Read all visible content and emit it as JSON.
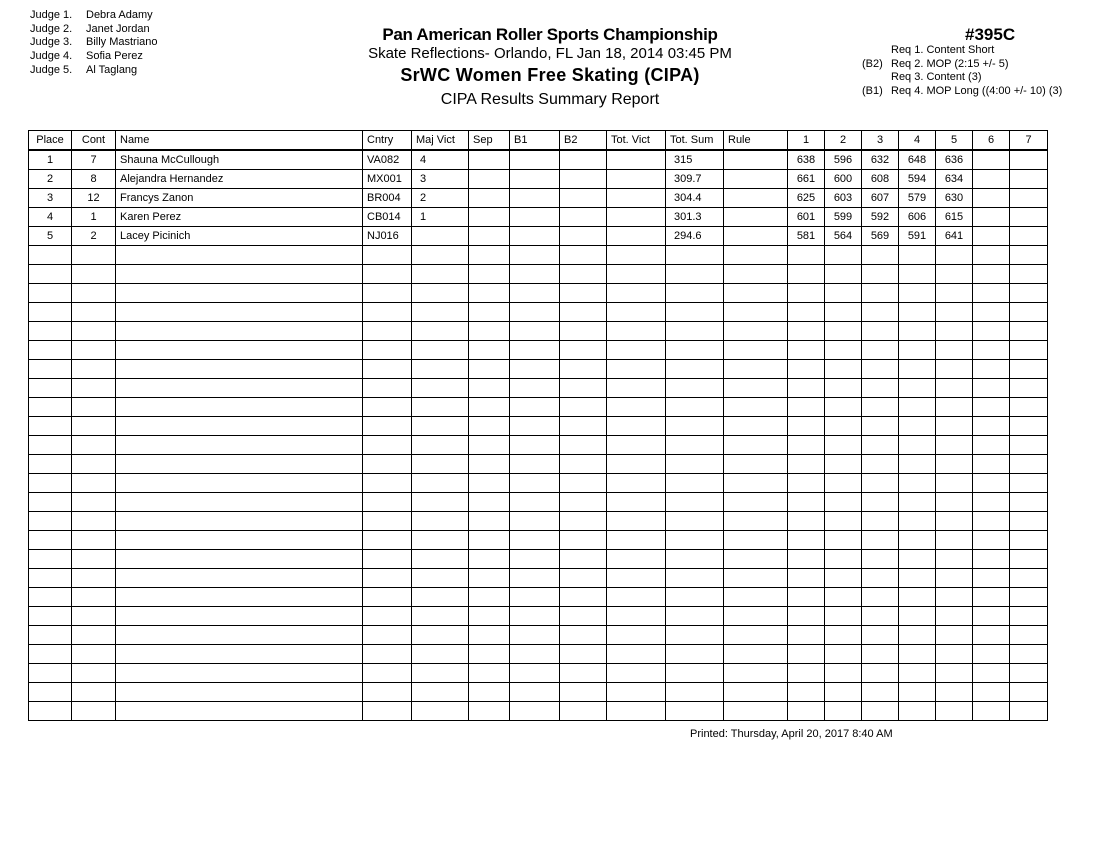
{
  "judges": [
    {
      "label": "Judge  1.",
      "name": "Debra Adamy"
    },
    {
      "label": "Judge  2.",
      "name": "Janet Jordan"
    },
    {
      "label": "Judge  3.",
      "name": "Billy Mastriano"
    },
    {
      "label": "Judge  4.",
      "name": "Sofia Perez"
    },
    {
      "label": "Judge  5.",
      "name": "Al Taglang"
    }
  ],
  "header": {
    "championship": "Pan American Roller Sports Championship",
    "venue": "Skate Reflections- Orlando, FL  Jan 18, 2014  03:45 PM",
    "event_name": "SrWC Women Free Skating (CIPA)",
    "report": "CIPA Results Summary Report",
    "event_number": "#395C"
  },
  "requirements": [
    {
      "prefix": "",
      "text": "Req  1.  Content Short"
    },
    {
      "prefix": "(B2)",
      "text": "Req  2.  MOP (2:15 +/- 5)"
    },
    {
      "prefix": "",
      "text": "Req  3.  Content (3)"
    },
    {
      "prefix": "(B1)",
      "text": "Req  4.  MOP Long ((4:00 +/- 10) (3)"
    }
  ],
  "table": {
    "columns": [
      "Place",
      "Cont",
      "Name",
      "Cntry",
      "Maj Vict",
      "Sep",
      "B1",
      "B2",
      "Tot. Vict",
      "Tot. Sum",
      "Rule",
      "1",
      "2",
      "3",
      "4",
      "5",
      "6",
      "7"
    ],
    "rows": [
      [
        "1",
        "7",
        "Shauna McCullough",
        "VA082",
        "4",
        "",
        "",
        "",
        "",
        "315",
        "",
        "638",
        "596",
        "632",
        "648",
        "636",
        "",
        ""
      ],
      [
        "2",
        "8",
        "Alejandra Hernandez",
        "MX001",
        "3",
        "",
        "",
        "",
        "",
        "309.7",
        "",
        "661",
        "600",
        "608",
        "594",
        "634",
        "",
        ""
      ],
      [
        "3",
        "12",
        "Francys Zanon",
        "BR004",
        "2",
        "",
        "",
        "",
        "",
        "304.4",
        "",
        "625",
        "603",
        "607",
        "579",
        "630",
        "",
        ""
      ],
      [
        "4",
        "1",
        "Karen Perez",
        "CB014",
        "1",
        "",
        "",
        "",
        "",
        "301.3",
        "",
        "601",
        "599",
        "592",
        "606",
        "615",
        "",
        ""
      ],
      [
        "5",
        "2",
        "Lacey Picinich",
        "NJ016",
        "",
        "",
        "",
        "",
        "",
        "294.6",
        "",
        "581",
        "564",
        "569",
        "591",
        "641",
        "",
        ""
      ]
    ]
  },
  "printed": "Printed:  Thursday, April 20, 2017  8:40 AM"
}
